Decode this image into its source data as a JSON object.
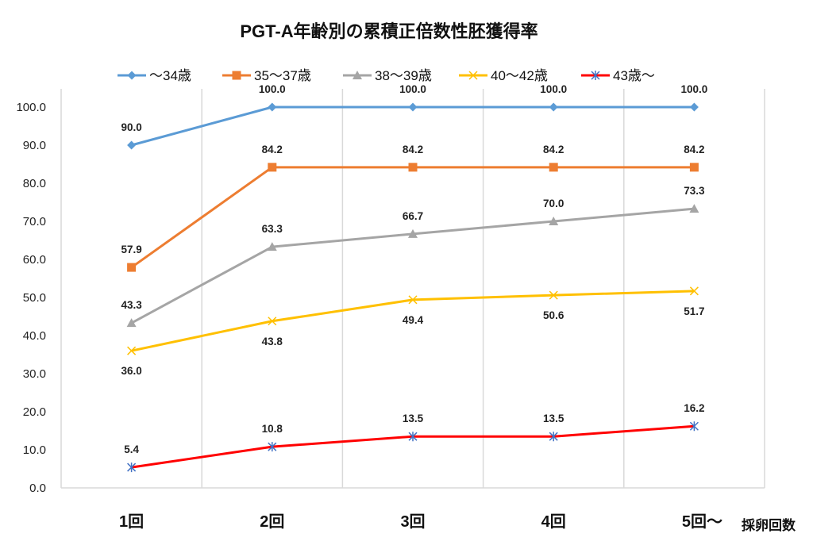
{
  "chart_data": {
    "type": "line",
    "title": "PGT-A年齢別の累積正倍数性胚獲得率",
    "xlabel": "採卵回数",
    "ylabel": "",
    "categories": [
      "1回",
      "2回",
      "3回",
      "4回",
      "5回～"
    ],
    "ylim": [
      0,
      100
    ],
    "yticks": [
      "0.0",
      "10.0",
      "20.0",
      "30.0",
      "40.0",
      "50.0",
      "60.0",
      "70.0",
      "80.0",
      "90.0",
      "100.0"
    ],
    "grid": "vertical category separators",
    "legend": "top",
    "series": [
      {
        "name": "～34歳",
        "color": "#5B9BD5",
        "marker": "diamond",
        "values": [
          90.0,
          100.0,
          100.0,
          100.0,
          100.0
        ],
        "labels": [
          "90.0",
          "100.0",
          "100.0",
          "100.0",
          "100.0"
        ],
        "label_pos": "above"
      },
      {
        "name": "35～37歳",
        "color": "#ED7D31",
        "marker": "square",
        "values": [
          57.9,
          84.2,
          84.2,
          84.2,
          84.2
        ],
        "labels": [
          "57.9",
          "84.2",
          "84.2",
          "84.2",
          "84.2"
        ],
        "label_pos": "above"
      },
      {
        "name": "38～39歳",
        "color": "#A5A5A5",
        "marker": "triangle",
        "values": [
          43.3,
          63.3,
          66.7,
          70.0,
          73.3
        ],
        "labels": [
          "43.3",
          "63.3",
          "66.7",
          "70.0",
          "73.3"
        ],
        "label_pos": "above"
      },
      {
        "name": "40～42歳",
        "color": "#FFC000",
        "marker": "x",
        "values": [
          36.0,
          43.8,
          49.4,
          50.6,
          51.7
        ],
        "labels": [
          "36.0",
          "43.8",
          "49.4",
          "50.6",
          "51.7"
        ],
        "label_pos": "below"
      },
      {
        "name": "43歳～",
        "color": "#FF0000",
        "marker": "star",
        "marker_color": "#4472C4",
        "values": [
          5.4,
          10.8,
          13.5,
          13.5,
          16.2
        ],
        "labels": [
          "5.4",
          "10.8",
          "13.5",
          "13.5",
          "16.2"
        ],
        "label_pos": "above"
      }
    ]
  }
}
